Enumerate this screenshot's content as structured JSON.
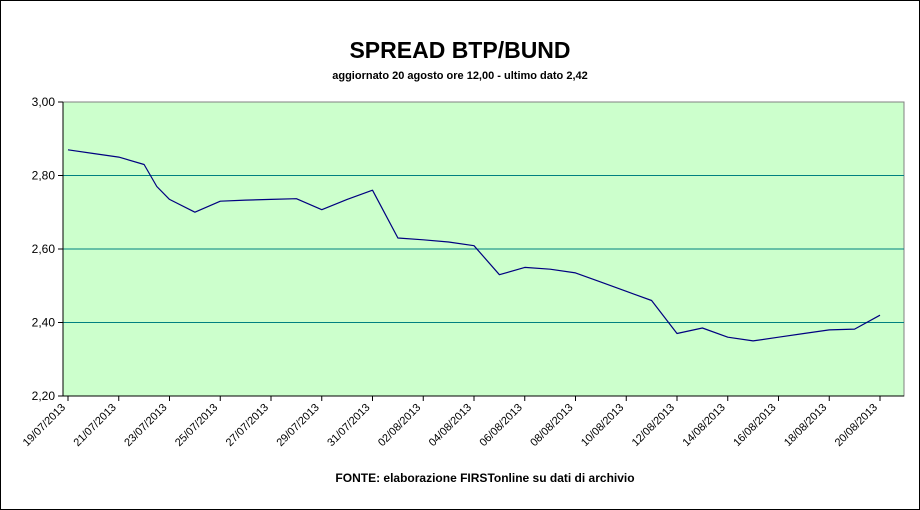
{
  "chart_data": {
    "type": "line",
    "title": "SPREAD BTP/BUND",
    "subtitle": "aggiornato 20 agosto ore 12,00 - ultimo dato 2,42",
    "source": "FONTE: elaborazione FIRSTonline su dati di archivio",
    "xlabel": "",
    "ylabel": "",
    "ylim": [
      2.2,
      3.0
    ],
    "y_ticks": [
      "2,20",
      "2,40",
      "2,60",
      "2,80",
      "3,00"
    ],
    "x_ticks": [
      "19/07/2013",
      "21/07/2013",
      "23/07/2013",
      "25/07/2013",
      "27/07/2013",
      "29/07/2013",
      "31/07/2013",
      "02/08/2013",
      "04/08/2013",
      "06/08/2013",
      "08/08/2013",
      "10/08/2013",
      "12/08/2013",
      "14/08/2013",
      "16/08/2013",
      "18/08/2013",
      "20/08/2013"
    ],
    "grid": true,
    "legend": "none",
    "colors": {
      "plot_background": "#ccffcc",
      "line": "#000080",
      "gridline": "#008080"
    },
    "series": [
      {
        "x": [
          "19/07/2013",
          "20/07/2013",
          "21/07/2013",
          "22/07/2013",
          "22/07/2013 12:00",
          "23/07/2013",
          "24/07/2013",
          "25/07/2013",
          "26/07/2013",
          "27/07/2013",
          "28/07/2013",
          "29/07/2013",
          "30/07/2013",
          "31/07/2013",
          "01/08/2013",
          "02/08/2013",
          "03/08/2013",
          "04/08/2013",
          "05/08/2013",
          "06/08/2013",
          "07/08/2013",
          "08/08/2013",
          "09/08/2013",
          "10/08/2013",
          "11/08/2013",
          "12/08/2013",
          "13/08/2013",
          "14/08/2013",
          "15/08/2013",
          "16/08/2013",
          "17/08/2013",
          "18/08/2013",
          "19/08/2013",
          "20/08/2013"
        ],
        "values": [
          2.87,
          2.86,
          2.85,
          2.83,
          2.77,
          2.735,
          2.7,
          2.73,
          2.733,
          2.735,
          2.737,
          2.707,
          2.735,
          2.76,
          2.63,
          2.625,
          2.619,
          2.609,
          2.53,
          2.55,
          2.545,
          2.535,
          2.51,
          2.485,
          2.46,
          2.37,
          2.385,
          2.36,
          2.35,
          2.36,
          2.37,
          2.38,
          2.382,
          2.42
        ]
      }
    ]
  }
}
